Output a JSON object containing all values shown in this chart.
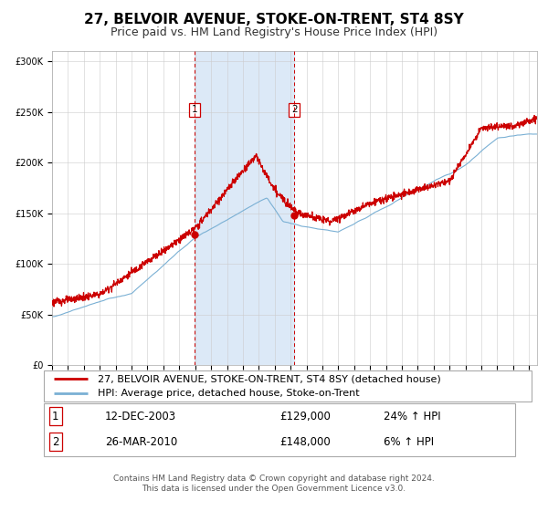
{
  "title": "27, BELVOIR AVENUE, STOKE-ON-TRENT, ST4 8SY",
  "subtitle": "Price paid vs. HM Land Registry's House Price Index (HPI)",
  "legend_line1": "27, BELVOIR AVENUE, STOKE-ON-TRENT, ST4 8SY (detached house)",
  "legend_line2": "HPI: Average price, detached house, Stoke-on-Trent",
  "transaction1_label": "1",
  "transaction1_date": "12-DEC-2003",
  "transaction1_price": "£129,000",
  "transaction1_hpi": "24% ↑ HPI",
  "transaction2_label": "2",
  "transaction2_date": "26-MAR-2010",
  "transaction2_price": "£148,000",
  "transaction2_hpi": "6% ↑ HPI",
  "footnote_line1": "Contains HM Land Registry data © Crown copyright and database right 2024.",
  "footnote_line2": "This data is licensed under the Open Government Licence v3.0.",
  "vline1_x": 2003.96,
  "vline2_x": 2010.23,
  "marker1_y": 129000,
  "marker2_y": 148000,
  "shade_color": "#dce9f7",
  "line1_color": "#cc0000",
  "line2_color": "#7ab0d4",
  "background_color": "#ffffff",
  "grid_color": "#cccccc",
  "ylim": [
    0,
    310000
  ],
  "xlim_start": 1995.0,
  "xlim_end": 2025.5,
  "title_fontsize": 11,
  "subtitle_fontsize": 9,
  "tick_fontsize": 7,
  "legend_fontsize": 8,
  "table_fontsize": 8.5,
  "footnote_fontsize": 6.5
}
